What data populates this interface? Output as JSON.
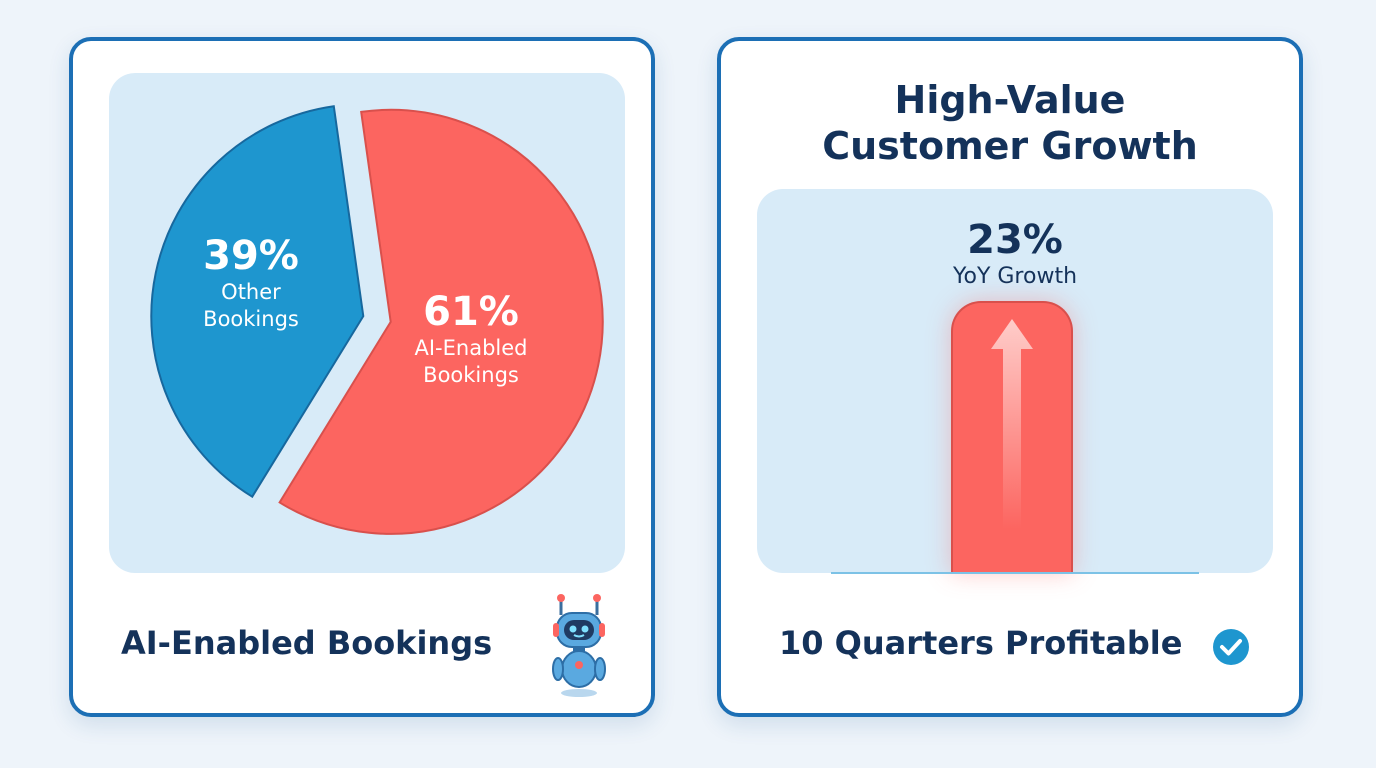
{
  "chart_data": [
    {
      "type": "pie",
      "title": "AI-Enabled Bookings",
      "slices": [
        {
          "label": "AI-Enabled Bookings",
          "value": 61,
          "value_label": "61%",
          "color": "#fc6560"
        },
        {
          "label": "Other Bookings",
          "value": 39,
          "value_label": "39%",
          "color": "#1e96cf"
        }
      ],
      "label_lines": {
        "other": [
          "Other",
          "Bookings"
        ],
        "ai": [
          "AI-Enabled",
          "Bookings"
        ]
      }
    },
    {
      "type": "bar",
      "title": "High-Value Customer Growth",
      "title_lines": [
        "High-Value",
        "Customer Growth"
      ],
      "categories": [
        "YoY Growth"
      ],
      "values": [
        23
      ],
      "value_label": "23%",
      "bar_color": "#fc6560"
    }
  ],
  "left_card": {
    "footer": "AI-Enabled Bookings",
    "icon": "robot-icon"
  },
  "right_card": {
    "footer": "10 Quarters Profitable",
    "icon": "checkmark-badge-icon"
  },
  "colors": {
    "accent_border": "#1c6fb5",
    "panel_bg": "#d8ebf8",
    "text_dark": "#14325a",
    "ai_red": "#fc6560",
    "other_blue": "#1e96cf"
  }
}
